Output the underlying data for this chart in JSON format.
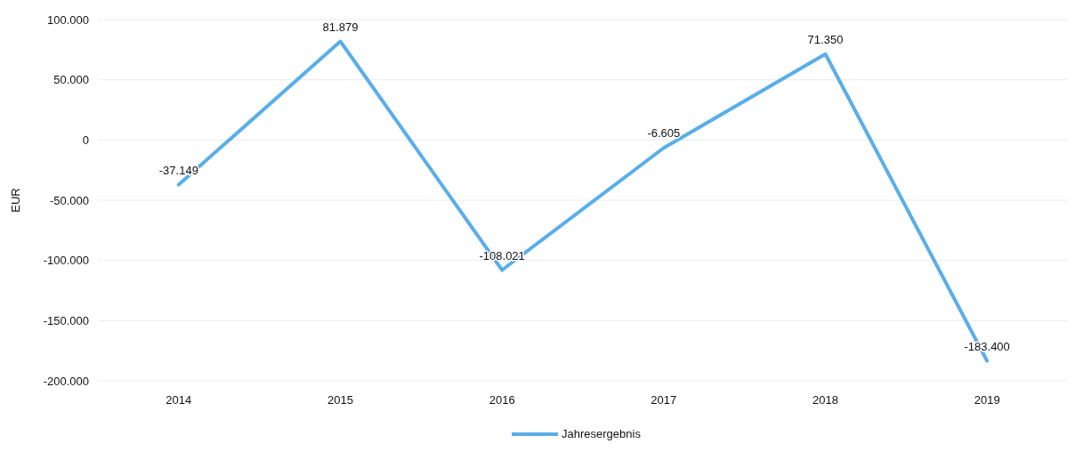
{
  "chart_data": {
    "type": "line",
    "ylabel": "EUR",
    "categories": [
      "2014",
      "2015",
      "2016",
      "2017",
      "2018",
      "2019"
    ],
    "series": [
      {
        "name": "Jahresergebnis",
        "color": "#5aaee8",
        "values": [
          -37149,
          81879,
          -108021,
          -6605,
          71350,
          -183400
        ],
        "value_labels": [
          "-37.149",
          "81.879",
          "-108.021",
          "-6.605",
          "71.350",
          "-183.400"
        ]
      }
    ],
    "ylim": [
      -200000,
      100000
    ],
    "yticks": [
      {
        "value": -200000,
        "label": "-200.000"
      },
      {
        "value": -150000,
        "label": "-150.000"
      },
      {
        "value": -100000,
        "label": "-100.000"
      },
      {
        "value": -50000,
        "label": "-50.000"
      },
      0,
      {
        "value": 50000,
        "label": "50.000"
      },
      {
        "value": 100000,
        "label": "100.000"
      }
    ],
    "grid": "y",
    "legend": "bottom",
    "marker": "none",
    "line_style": "solid"
  }
}
